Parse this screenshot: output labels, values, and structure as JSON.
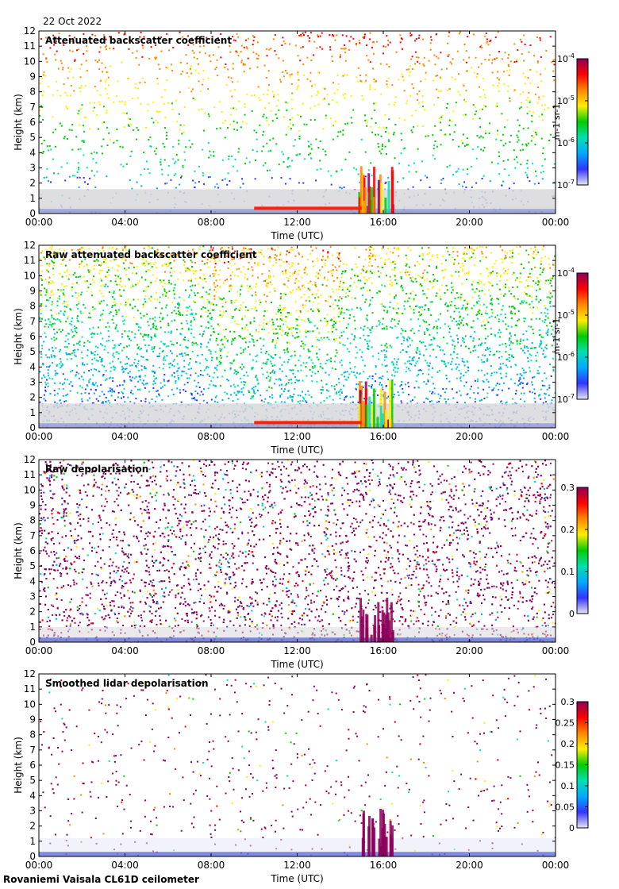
{
  "header": {
    "date": "22 Oct 2022"
  },
  "footer": {
    "instrument": "Rovaniemi Vaisala CL61D ceilometer"
  },
  "colors": {
    "jet": [
      "#e6e6f2",
      "#3333ff",
      "#00aaff",
      "#00e0b0",
      "#00cc00",
      "#ffee00",
      "#ff8800",
      "#ff0000",
      "#8b005a"
    ],
    "background_clear": "#ffffff",
    "background_low": "#d8d8dc"
  },
  "chart_data": [
    {
      "type": "heatmap",
      "title": "Attenuated backscatter coefficient",
      "xlabel": "Time (UTC)",
      "ylabel": "Height (km)",
      "x_ticks": [
        "00:00",
        "04:00",
        "08:00",
        "12:00",
        "16:00",
        "20:00",
        "00:00"
      ],
      "y_ticks": [
        0,
        1,
        2,
        3,
        4,
        5,
        6,
        7,
        8,
        9,
        10,
        11,
        12
      ],
      "ylim": [
        0,
        12
      ],
      "xlim_hours": [
        0,
        24
      ],
      "colorbar": {
        "scale": "log",
        "ticks": [
          "10-7",
          "10-6",
          "10-5",
          "10-4"
        ],
        "unit": "m-1 sr-1"
      }
    },
    {
      "type": "heatmap",
      "title": "Raw attenuated backscatter coefficient",
      "xlabel": "Time (UTC)",
      "ylabel": "Height (km)",
      "x_ticks": [
        "00:00",
        "04:00",
        "08:00",
        "12:00",
        "16:00",
        "20:00",
        "00:00"
      ],
      "y_ticks": [
        0,
        1,
        2,
        3,
        4,
        5,
        6,
        7,
        8,
        9,
        10,
        11,
        12
      ],
      "ylim": [
        0,
        12
      ],
      "xlim_hours": [
        0,
        24
      ],
      "colorbar": {
        "scale": "log",
        "ticks": [
          "10-7",
          "10-6",
          "10-5",
          "10-4"
        ],
        "unit": "m-1 sr-1"
      }
    },
    {
      "type": "heatmap",
      "title": "Raw depolarisation",
      "xlabel": "Time (UTC)",
      "ylabel": "Height (km)",
      "x_ticks": [
        "00:00",
        "04:00",
        "08:00",
        "12:00",
        "16:00",
        "20:00",
        "00:00"
      ],
      "y_ticks": [
        0,
        1,
        2,
        3,
        4,
        5,
        6,
        7,
        8,
        9,
        10,
        11,
        12
      ],
      "ylim": [
        0,
        12
      ],
      "xlim_hours": [
        0,
        24
      ],
      "colorbar": {
        "scale": "linear",
        "range": [
          0,
          0.3
        ],
        "ticks": [
          "0",
          "0.1",
          "0.2",
          "0.3"
        ],
        "unit": ""
      }
    },
    {
      "type": "heatmap",
      "title": "Smoothed lidar depolarisation",
      "xlabel": "Time (UTC)",
      "ylabel": "Height (km)",
      "x_ticks": [
        "00:00",
        "04:00",
        "08:00",
        "12:00",
        "16:00",
        "20:00",
        "00:00"
      ],
      "y_ticks": [
        0,
        1,
        2,
        3,
        4,
        5,
        6,
        7,
        8,
        9,
        10,
        11,
        12
      ],
      "ylim": [
        0,
        12
      ],
      "xlim_hours": [
        0,
        24
      ],
      "colorbar": {
        "scale": "linear",
        "range": [
          0,
          0.3
        ],
        "ticks": [
          "0",
          "0.05",
          "0.1",
          "0.15",
          "0.2",
          "0.25",
          "0.3"
        ],
        "unit": ""
      }
    }
  ]
}
